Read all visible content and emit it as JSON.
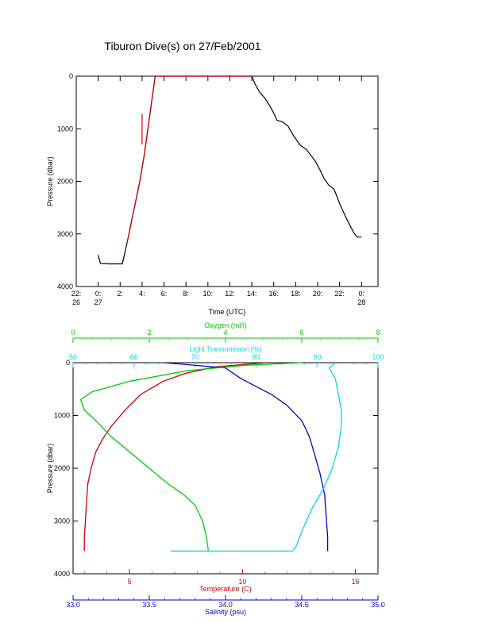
{
  "title": "Tiburon Dive(s) on 27/Feb/2001",
  "chart_data": [
    {
      "type": "line",
      "xlabel": "Time (UTC)",
      "ylabel": "Pressure (dbar)",
      "x_ticks": [
        {
          "t": -2,
          "label": "22:",
          "label2": "26"
        },
        {
          "t": 0,
          "label": "0:",
          "label2": "27"
        },
        {
          "t": 2,
          "label": "2:",
          "label2": ""
        },
        {
          "t": 4,
          "label": "4:",
          "label2": ""
        },
        {
          "t": 6,
          "label": "6:",
          "label2": ""
        },
        {
          "t": 8,
          "label": "8:",
          "label2": ""
        },
        {
          "t": 10,
          "label": "10:",
          "label2": ""
        },
        {
          "t": 12,
          "label": "12:",
          "label2": ""
        },
        {
          "t": 14,
          "label": "14:",
          "label2": ""
        },
        {
          "t": 16,
          "label": "16:",
          "label2": ""
        },
        {
          "t": 18,
          "label": "18:",
          "label2": ""
        },
        {
          "t": 20,
          "label": "20:",
          "label2": ""
        },
        {
          "t": 22,
          "label": "22:",
          "label2": ""
        },
        {
          "t": 24,
          "label": "0:",
          "label2": "28"
        }
      ],
      "y_ticks": [
        0,
        1000,
        2000,
        3000,
        4000
      ],
      "xlim": [
        -2,
        25.5
      ],
      "ylim": [
        0,
        4000
      ],
      "y_inverted": true,
      "series": [
        {
          "color": "#000000",
          "points": [
            [
              0.0,
              3400
            ],
            [
              0.2,
              3560
            ],
            [
              1.0,
              3570
            ],
            [
              2.2,
              3570
            ],
            [
              2.6,
              3200
            ],
            [
              3.0,
              2800
            ],
            [
              3.5,
              2300
            ],
            [
              3.8,
              2000
            ],
            [
              4.2,
              1500
            ],
            [
              4.6,
              900
            ],
            [
              5.0,
              300
            ],
            [
              5.2,
              0
            ],
            [
              6.0,
              0
            ],
            [
              10.0,
              0
            ],
            [
              14.0,
              0
            ],
            [
              14.3,
              150
            ],
            [
              14.7,
              300
            ],
            [
              15.2,
              420
            ],
            [
              15.6,
              550
            ],
            [
              16.0,
              700
            ],
            [
              16.3,
              840
            ],
            [
              16.8,
              870
            ],
            [
              17.3,
              950
            ],
            [
              17.8,
              1130
            ],
            [
              18.4,
              1310
            ],
            [
              19.0,
              1400
            ],
            [
              19.8,
              1620
            ],
            [
              20.2,
              1780
            ],
            [
              20.6,
              1950
            ],
            [
              21.0,
              2070
            ],
            [
              21.5,
              2150
            ],
            [
              22.0,
              2420
            ],
            [
              22.5,
              2650
            ],
            [
              22.9,
              2820
            ],
            [
              23.3,
              2980
            ],
            [
              23.6,
              3060
            ],
            [
              24.0,
              3060
            ]
          ]
        },
        {
          "color": "#cc0000",
          "points": [
            [
              2.6,
              3200
            ],
            [
              3.0,
              2790
            ],
            [
              3.5,
              2290
            ],
            [
              3.8,
              1990
            ],
            [
              4.2,
              1490
            ],
            [
              4.6,
              890
            ],
            [
              5.0,
              290
            ],
            [
              5.2,
              0
            ],
            [
              6.0,
              0
            ],
            [
              14.0,
              0
            ]
          ]
        },
        {
          "color": "#cc0000",
          "points": [
            [
              4.0,
              720
            ],
            [
              4.0,
              1300
            ]
          ]
        }
      ]
    },
    {
      "type": "line",
      "ylabel": "Pressure (dbar)",
      "y_ticks": [
        0,
        1000,
        2000,
        3000,
        4000
      ],
      "ylim": [
        0,
        4000
      ],
      "y_inverted": true,
      "axes": [
        {
          "name": "Temperature (C)",
          "color": "#cc0000",
          "position": "bottom",
          "range": [
            2.5,
            16
          ],
          "ticks": [
            5,
            10,
            15
          ]
        },
        {
          "name": "Salinity (psu)",
          "color": "#0000cc",
          "position": "bottom-2",
          "range": [
            33.0,
            35.0
          ],
          "ticks": [
            "33.0",
            "33.5",
            "34.0",
            "34.5",
            "35.0"
          ]
        },
        {
          "name": "Oxygen (ml/l)",
          "color": "#00cc00",
          "position": "top",
          "range": [
            0,
            8
          ],
          "ticks": [
            0,
            2,
            4,
            6,
            8
          ]
        },
        {
          "name": "Light Transmission (%)",
          "color": "#00dddd",
          "position": "top-2",
          "range": [
            50,
            100
          ],
          "ticks": [
            50,
            60,
            70,
            80,
            90,
            100
          ]
        }
      ],
      "series": [
        {
          "axis": 0,
          "color": "#cc0000",
          "points": [
            [
              11.0,
              0
            ],
            [
              8.8,
              80
            ],
            [
              7.5,
              200
            ],
            [
              6.5,
              350
            ],
            [
              5.5,
              600
            ],
            [
              4.8,
              900
            ],
            [
              4.2,
              1200
            ],
            [
              3.8,
              1450
            ],
            [
              3.5,
              1700
            ],
            [
              3.3,
              2000
            ],
            [
              3.15,
              2300
            ],
            [
              3.1,
              2600
            ],
            [
              3.05,
              3000
            ],
            [
              3.0,
              3300
            ],
            [
              3.0,
              3570
            ]
          ]
        },
        {
          "axis": 1,
          "color": "#0000cc",
          "points": [
            [
              33.6,
              0
            ],
            [
              34.0,
              100
            ],
            [
              34.1,
              300
            ],
            [
              34.2,
              450
            ],
            [
              34.3,
              600
            ],
            [
              34.4,
              800
            ],
            [
              34.5,
              1100
            ],
            [
              34.55,
              1400
            ],
            [
              34.58,
              1700
            ],
            [
              34.62,
              2100
            ],
            [
              34.65,
              2500
            ],
            [
              34.66,
              2900
            ],
            [
              34.67,
              3300
            ],
            [
              34.67,
              3570
            ]
          ]
        },
        {
          "axis": 2,
          "color": "#00cc00",
          "points": [
            [
              6.0,
              0
            ],
            [
              4.5,
              50
            ],
            [
              3.0,
              150
            ],
            [
              1.5,
              350
            ],
            [
              0.5,
              550
            ],
            [
              0.2,
              700
            ],
            [
              0.3,
              900
            ],
            [
              0.6,
              1100
            ],
            [
              1.0,
              1400
            ],
            [
              1.5,
              1700
            ],
            [
              2.0,
              2000
            ],
            [
              2.5,
              2300
            ],
            [
              2.9,
              2500
            ],
            [
              3.2,
              2700
            ],
            [
              3.4,
              3000
            ],
            [
              3.5,
              3300
            ],
            [
              3.55,
              3570
            ]
          ]
        },
        {
          "axis": 3,
          "color": "#00dddd",
          "points": [
            [
              93.0,
              0
            ],
            [
              92.0,
              100
            ],
            [
              93.0,
              300
            ],
            [
              93.5,
              600
            ],
            [
              94.0,
              900
            ],
            [
              94.0,
              1200
            ],
            [
              93.5,
              1600
            ],
            [
              92.5,
              2000
            ],
            [
              91.0,
              2400
            ],
            [
              89.0,
              2800
            ],
            [
              87.5,
              3200
            ],
            [
              86.5,
              3500
            ],
            [
              86.0,
              3570
            ],
            [
              82.0,
              3570
            ],
            [
              75.0,
              3570
            ],
            [
              66.0,
              3570
            ]
          ]
        }
      ]
    }
  ]
}
